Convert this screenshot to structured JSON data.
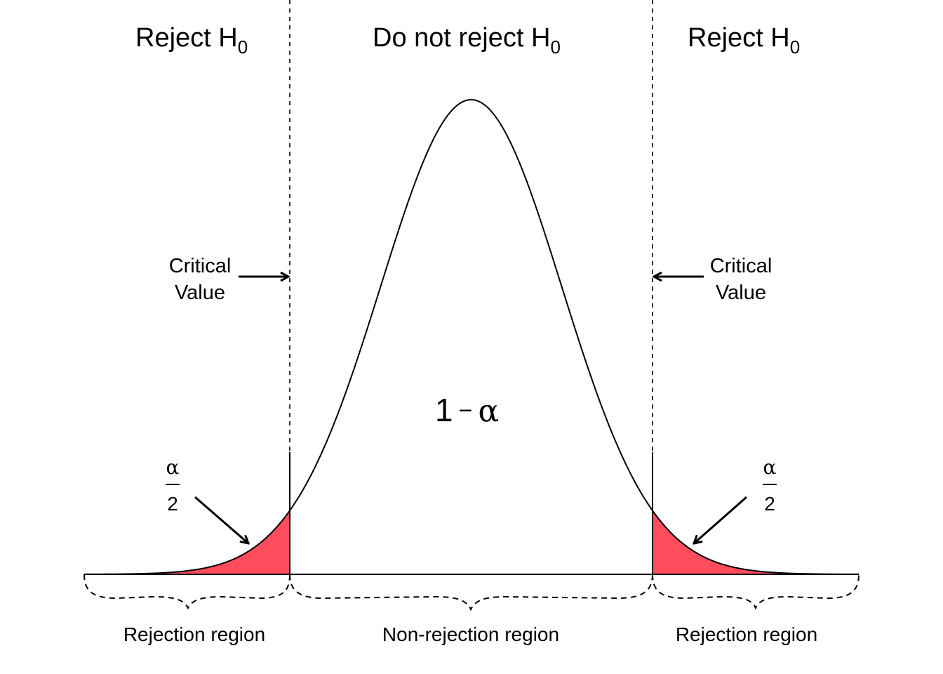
{
  "headers": {
    "left": {
      "text": "Reject H",
      "sub": "0"
    },
    "center": {
      "text": "Do not reject H",
      "sub": "0"
    },
    "right": {
      "text": "Reject H",
      "sub": "0"
    }
  },
  "critical_value": {
    "line1": "Critical",
    "line2": "Value"
  },
  "center_area": {
    "one": "1",
    "minus": "−",
    "alpha": "α"
  },
  "tail_area": {
    "numerator": "α",
    "denominator": "2"
  },
  "regions": {
    "left": "Rejection region",
    "center": "Non-rejection region",
    "right": "Rejection region"
  },
  "colors": {
    "tail_fill": "#ff4d5e",
    "stroke": "#000000"
  }
}
